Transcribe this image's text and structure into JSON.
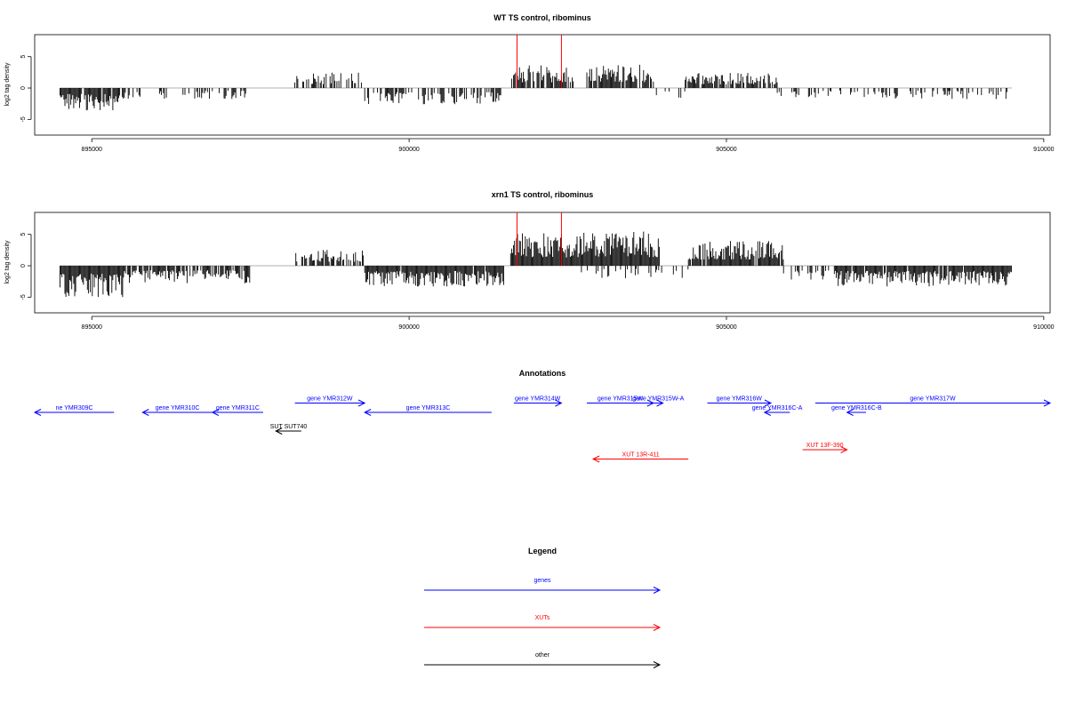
{
  "colors": {
    "gene": "#0000ff",
    "xut": "#ff0000",
    "other": "#000000",
    "bars": "#000000",
    "marker": "#ff0000",
    "baseline": "#999999"
  },
  "chart_data": [
    {
      "type": "bar",
      "title": "WT TS control, ribominus",
      "ylabel": "log2 tag density",
      "xlim": [
        894100,
        910100
      ],
      "ylim": [
        -7.5,
        8.5
      ],
      "xticks": [
        895000,
        900000,
        905000,
        910000
      ],
      "xtick_labels": [
        "895000",
        "900000",
        "905000",
        "910000"
      ],
      "yticks": [
        -5,
        0,
        5
      ],
      "ytick_labels": [
        "-5",
        "0",
        "5"
      ],
      "markers": [
        {
          "x": 901700,
          "height": 8.5
        },
        {
          "x": 902400,
          "height": 8.5
        }
      ],
      "segments": [
        {
          "start": 894500,
          "end": 895450,
          "sign": -1,
          "amp": 3.6,
          "density": 0.9
        },
        {
          "start": 895450,
          "end": 897500,
          "sign": -1,
          "amp": 1.8,
          "density": 0.3
        },
        {
          "start": 898200,
          "end": 899300,
          "sign": 1,
          "amp": 2.5,
          "density": 0.45
        },
        {
          "start": 899300,
          "end": 901450,
          "sign": -1,
          "amp": 2.6,
          "density": 0.55
        },
        {
          "start": 901600,
          "end": 902600,
          "sign": 1,
          "amp": 3.6,
          "density": 0.85
        },
        {
          "start": 902800,
          "end": 903850,
          "sign": 1,
          "amp": 3.8,
          "density": 0.85
        },
        {
          "start": 903850,
          "end": 904350,
          "sign": -1,
          "amp": 1.8,
          "density": 0.2
        },
        {
          "start": 904350,
          "end": 905800,
          "sign": 1,
          "amp": 2.4,
          "density": 0.75
        },
        {
          "start": 905800,
          "end": 907200,
          "sign": -1,
          "amp": 1.6,
          "density": 0.25
        },
        {
          "start": 907200,
          "end": 909500,
          "sign": -1,
          "amp": 1.8,
          "density": 0.35
        }
      ]
    },
    {
      "type": "bar",
      "title": "xrn1 TS control, ribominus",
      "ylabel": "log2 tag density",
      "xlim": [
        894100,
        910100
      ],
      "ylim": [
        -7.5,
        8.5
      ],
      "xticks": [
        895000,
        900000,
        905000,
        910000
      ],
      "xtick_labels": [
        "895000",
        "900000",
        "905000",
        "910000"
      ],
      "yticks": [
        -5,
        0,
        5
      ],
      "ytick_labels": [
        "-5",
        "0",
        "5"
      ],
      "markers": [
        {
          "x": 901700,
          "height": 8.5
        },
        {
          "x": 902400,
          "height": 8.5
        }
      ],
      "segments": [
        {
          "start": 894500,
          "end": 895500,
          "sign": -1,
          "amp": 5.0,
          "density": 1.0
        },
        {
          "start": 895500,
          "end": 897500,
          "sign": -1,
          "amp": 2.8,
          "density": 0.7
        },
        {
          "start": 898200,
          "end": 899300,
          "sign": 1,
          "amp": 2.6,
          "density": 0.6
        },
        {
          "start": 899300,
          "end": 901500,
          "sign": -1,
          "amp": 3.3,
          "density": 0.95
        },
        {
          "start": 901600,
          "end": 902600,
          "sign": 1,
          "amp": 5.2,
          "density": 1.0
        },
        {
          "start": 902600,
          "end": 903950,
          "sign": 1,
          "amp": 5.5,
          "density": 1.0
        },
        {
          "start": 902700,
          "end": 904400,
          "sign": -1,
          "amp": 2.0,
          "density": 0.25
        },
        {
          "start": 904400,
          "end": 905900,
          "sign": 1,
          "amp": 4.0,
          "density": 0.9
        },
        {
          "start": 905900,
          "end": 906700,
          "sign": -1,
          "amp": 2.2,
          "density": 0.4
        },
        {
          "start": 906700,
          "end": 909500,
          "sign": -1,
          "amp": 3.3,
          "density": 0.95
        }
      ]
    }
  ],
  "annotations": {
    "title": "Annotations",
    "items": [
      {
        "label": "ne YMR309C",
        "kind": "gene",
        "from": 895350,
        "to": 894100,
        "row": 2
      },
      {
        "label": "gene YMR310C",
        "kind": "gene",
        "from": 896900,
        "to": 895800,
        "row": 2
      },
      {
        "label": "gene YMR311C",
        "kind": "gene",
        "from": 897700,
        "to": 896900,
        "row": 2
      },
      {
        "label": "gene YMR312W",
        "kind": "gene",
        "from": 898200,
        "to": 899300,
        "row": 1
      },
      {
        "label": "gene YMR313C",
        "kind": "gene",
        "from": 901300,
        "to": 899300,
        "row": 2
      },
      {
        "label": "gene YMR314W",
        "kind": "gene",
        "from": 901650,
        "to": 902400,
        "row": 1
      },
      {
        "label": "gene YMR315W",
        "kind": "gene",
        "from": 902800,
        "to": 903850,
        "row": 1
      },
      {
        "label": "gene YMR315W-A",
        "kind": "gene",
        "from": 903850,
        "to": 904000,
        "row": 1
      },
      {
        "label": "gene YMR316W",
        "kind": "gene",
        "from": 904700,
        "to": 905700,
        "row": 1
      },
      {
        "label": "gene YMR316C-A",
        "kind": "gene",
        "from": 906000,
        "to": 905600,
        "row": 2
      },
      {
        "label": "gene YMR316C-B",
        "kind": "gene",
        "from": 907200,
        "to": 906900,
        "row": 2
      },
      {
        "label": "gene YMR317W",
        "kind": "gene",
        "from": 906400,
        "to": 910100,
        "row": 1
      },
      {
        "label": "SUT SUT740",
        "kind": "other",
        "from": 898300,
        "to": 897900,
        "row": 4
      },
      {
        "label": "XUT 13R-411",
        "kind": "xut",
        "from": 904400,
        "to": 902900,
        "row": 7
      },
      {
        "label": "XUT 13F-390",
        "kind": "xut",
        "from": 906200,
        "to": 906900,
        "row": 6
      }
    ]
  },
  "legend": {
    "title": "Legend",
    "entries": [
      {
        "label": "genes",
        "kind": "gene"
      },
      {
        "label": "XUTs",
        "kind": "xut"
      },
      {
        "label": "other",
        "kind": "other"
      }
    ]
  }
}
